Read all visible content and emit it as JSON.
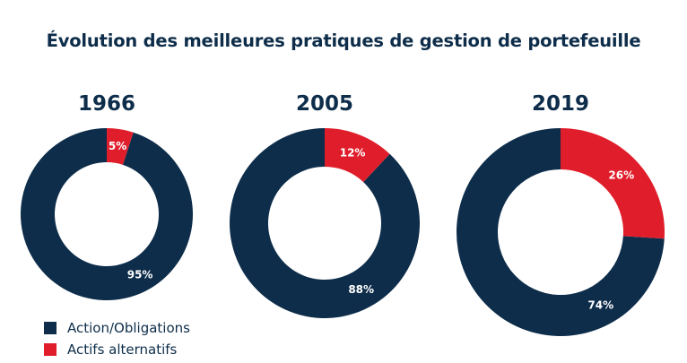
{
  "chart_data": {
    "type": "pie",
    "title": "Évolution des meilleures pratiques de gestion de portefeuille",
    "legend": {
      "position": "bottom-left",
      "entries": [
        {
          "name": "Action/Obligations",
          "color": "#0d2d4a"
        },
        {
          "name": "Actifs alternatifs",
          "color": "#e01e2b"
        }
      ]
    },
    "charts": [
      {
        "year": "1966",
        "slices": [
          {
            "name": "Action/Obligations",
            "value": 95,
            "label": "95%"
          },
          {
            "name": "Actifs alternatifs",
            "value": 5,
            "label": "5%"
          }
        ]
      },
      {
        "year": "2005",
        "slices": [
          {
            "name": "Action/Obligations",
            "value": 88,
            "label": "88%"
          },
          {
            "name": "Actifs alternatifs",
            "value": 12,
            "label": "12%"
          }
        ]
      },
      {
        "year": "2019",
        "slices": [
          {
            "name": "Action/Obligations",
            "value": 74,
            "label": "74%"
          },
          {
            "name": "Actifs alternatifs",
            "value": 26,
            "label": "26%"
          }
        ]
      }
    ]
  }
}
